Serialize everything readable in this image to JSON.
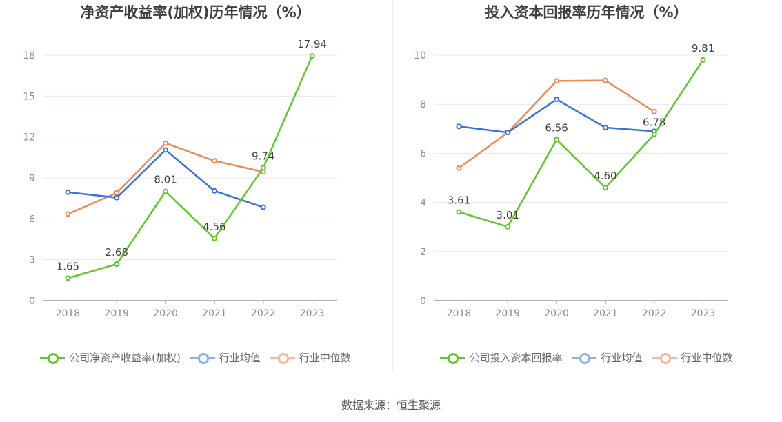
{
  "colors": {
    "company": "#5ec72c",
    "avg": "#3a72d8",
    "median": "#f08858",
    "grid": "#e6e9f0",
    "axis": "#666666",
    "tick_text": "#8c8c8c",
    "label_text": "#404040"
  },
  "footer": "数据来源：恒生聚源",
  "chart_data": [
    {
      "type": "line",
      "title": "净资产收益率(加权)历年情况（%）",
      "categories": [
        "2018",
        "2019",
        "2020",
        "2021",
        "2022",
        "2023"
      ],
      "yticks": [
        "0",
        "3",
        "6",
        "9",
        "12",
        "15",
        "18"
      ],
      "ylim": [
        0,
        18
      ],
      "grid": true,
      "legend_position": "bottom",
      "series": [
        {
          "name": "公司净资产收益率(加权)",
          "key": "company",
          "values": [
            1.65,
            2.68,
            8.01,
            4.56,
            9.74,
            17.94
          ],
          "labels": [
            "1.65",
            "2.68",
            "8.01",
            "4.56",
            "9.74",
            "17.94"
          ]
        },
        {
          "name": "行业均值",
          "key": "avg",
          "values": [
            7.95,
            7.55,
            11.05,
            8.05,
            6.85,
            null
          ]
        },
        {
          "name": "行业中位数",
          "key": "median",
          "values": [
            6.35,
            7.9,
            11.55,
            10.25,
            9.45,
            null
          ]
        }
      ]
    },
    {
      "type": "line",
      "title": "投入资本回报率历年情况（%）",
      "categories": [
        "2018",
        "2019",
        "2020",
        "2021",
        "2022",
        "2023"
      ],
      "yticks": [
        "0",
        "2",
        "4",
        "6",
        "8",
        "10"
      ],
      "ylim": [
        0,
        10
      ],
      "grid": true,
      "legend_position": "bottom",
      "series": [
        {
          "name": "公司投入资本回报率",
          "key": "company",
          "values": [
            3.61,
            3.01,
            6.56,
            4.6,
            6.78,
            9.81
          ],
          "labels": [
            "3.61",
            "3.01",
            "6.56",
            "4.60",
            "6.78",
            "9.81"
          ]
        },
        {
          "name": "行业均值",
          "key": "avg",
          "values": [
            7.1,
            6.85,
            8.2,
            7.05,
            6.9,
            null
          ]
        },
        {
          "name": "行业中位数",
          "key": "median",
          "values": [
            5.4,
            6.85,
            8.95,
            8.97,
            7.7,
            null
          ]
        }
      ]
    }
  ]
}
